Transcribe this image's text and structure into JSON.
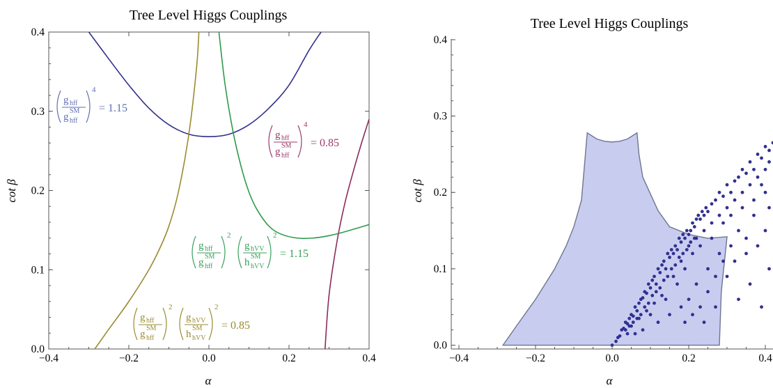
{
  "chart_data": [
    {
      "type": "line",
      "title": "Tree Level Higgs Couplings",
      "xlabel": "α",
      "ylabel": "cot β",
      "xlim": [
        -0.4,
        0.4
      ],
      "ylim": [
        0.0,
        0.4
      ],
      "xticks": [
        "−0.4",
        "−0.2",
        "0.0",
        "0.2",
        "0.4"
      ],
      "yticks": [
        "0.0",
        "0.1",
        "0.2",
        "0.3",
        "0.4"
      ],
      "grid": false,
      "series": [
        {
          "name": "(g_hff/g_hff^SM)^4 = 1.15",
          "color": "#2f2f8c",
          "x": [
            -0.3,
            -0.25,
            -0.2,
            -0.15,
            -0.1,
            -0.05,
            0.0,
            0.05,
            0.1,
            0.15,
            0.2,
            0.25,
            0.28
          ],
          "y": [
            0.4,
            0.366,
            0.333,
            0.304,
            0.283,
            0.271,
            0.268,
            0.271,
            0.283,
            0.304,
            0.333,
            0.377,
            0.4
          ]
        },
        {
          "name": "(g_hff/g_hff^SM)^4 = 0.85",
          "color": "#8c2a5a",
          "x": [
            0.29,
            0.3,
            0.32,
            0.34,
            0.36,
            0.38,
            0.4
          ],
          "y": [
            0.0,
            0.068,
            0.136,
            0.185,
            0.223,
            0.258,
            0.29
          ]
        },
        {
          "name": "(g_hff/g_hff^SM)^2 (g_hVV/h_hVV^SM)^2 = 1.15",
          "color": "#2f9a4a",
          "x": [
            0.025,
            0.04,
            0.06,
            0.08,
            0.1,
            0.12,
            0.15,
            0.18,
            0.22,
            0.26,
            0.3,
            0.34,
            0.4
          ],
          "y": [
            0.4,
            0.335,
            0.275,
            0.231,
            0.198,
            0.176,
            0.155,
            0.145,
            0.14,
            0.14,
            0.143,
            0.148,
            0.157
          ]
        },
        {
          "name": "(g_hff/g_hff^SM)^2 (g_hVV/h_hVV^SM)^2 = 0.85",
          "color": "#9a8b30",
          "x": [
            -0.285,
            -0.25,
            -0.2,
            -0.15,
            -0.12,
            -0.1,
            -0.08,
            -0.06,
            -0.045,
            -0.03,
            -0.025
          ],
          "y": [
            0.0,
            0.025,
            0.06,
            0.1,
            0.13,
            0.155,
            0.19,
            0.24,
            0.29,
            0.36,
            0.4
          ]
        }
      ],
      "annotations": [
        {
          "text_parts": {
            "num": "g",
            "num_sub": "hff",
            "den": "g",
            "den_sub": "hff",
            "den_sup": "SM",
            "power": "4",
            "rhs": "= 1.15"
          },
          "color": "#5e6fb0"
        },
        {
          "text_parts": {
            "num": "g",
            "num_sub": "hff",
            "den": "g",
            "den_sub": "hff",
            "den_sup": "SM",
            "power": "4",
            "rhs": "= 0.85"
          },
          "color": "#9a3a6a"
        },
        {
          "text_parts": {
            "num1": "g",
            "num1_sub": "hff",
            "den1": "g",
            "den1_sub": "hff",
            "den1_sup": "SM",
            "pow1": "2",
            "num2": "g",
            "num2_sub": "hVV",
            "den2": "h",
            "den2_sub": "hVV",
            "den2_sup": "SM",
            "pow2": "2",
            "rhs": "= 1.15"
          },
          "color": "#3aa05a"
        },
        {
          "text_parts": {
            "num1": "g",
            "num1_sub": "hff",
            "den1": "g",
            "den1_sub": "hff",
            "den1_sup": "SM",
            "pow1": "2",
            "num2": "g",
            "num2_sub": "hVV",
            "den2": "h",
            "den2_sub": "hVV",
            "den2_sup": "SM",
            "pow2": "2",
            "rhs": "= 0.85"
          },
          "color": "#9a8b30"
        }
      ]
    },
    {
      "type": "scatter",
      "title": "Tree Level Higgs Couplings",
      "xlabel": "α",
      "ylabel": "cot β",
      "xlim": [
        -0.42,
        0.42
      ],
      "ylim": [
        -0.005,
        0.41
      ],
      "xticks": [
        "−0.4",
        "−0.2",
        "0.0",
        "0.2",
        "0.4"
      ],
      "yticks": [
        "0.0",
        "0.1",
        "0.2",
        "0.3",
        "0.4"
      ],
      "grid": false,
      "region": {
        "fill": "#c8cdf0",
        "stroke": "#6e7490",
        "x": [
          -0.285,
          -0.25,
          -0.2,
          -0.15,
          -0.12,
          -0.1,
          -0.08,
          -0.065,
          -0.04,
          -0.02,
          0.0,
          0.02,
          0.04,
          0.065,
          0.07,
          0.08,
          0.1,
          0.12,
          0.15,
          0.2,
          0.25,
          0.3,
          0.285,
          0.28,
          -0.285
        ],
        "y": [
          0.0,
          0.025,
          0.06,
          0.1,
          0.13,
          0.155,
          0.19,
          0.278,
          0.27,
          0.267,
          0.266,
          0.267,
          0.27,
          0.278,
          0.25,
          0.22,
          0.198,
          0.176,
          0.155,
          0.145,
          0.14,
          0.142,
          0.07,
          0.0,
          0.0
        ]
      },
      "points_color": "#303090",
      "points_description": "sample points concentrated along a wedge from (0,0) widening to the upper right",
      "points": [
        [
          0.0,
          0.0
        ],
        [
          0.01,
          0.005
        ],
        [
          0.015,
          0.01
        ],
        [
          0.02,
          0.012
        ],
        [
          0.025,
          0.02
        ],
        [
          0.03,
          0.022
        ],
        [
          0.035,
          0.03
        ],
        [
          0.04,
          0.028
        ],
        [
          0.045,
          0.035
        ],
        [
          0.05,
          0.04
        ],
        [
          0.055,
          0.038
        ],
        [
          0.06,
          0.05
        ],
        [
          0.065,
          0.045
        ],
        [
          0.07,
          0.055
        ],
        [
          0.075,
          0.06
        ],
        [
          0.08,
          0.062
        ],
        [
          0.085,
          0.07
        ],
        [
          0.09,
          0.068
        ],
        [
          0.095,
          0.08
        ],
        [
          0.1,
          0.075
        ],
        [
          0.105,
          0.085
        ],
        [
          0.11,
          0.09
        ],
        [
          0.115,
          0.08
        ],
        [
          0.12,
          0.1
        ],
        [
          0.125,
          0.095
        ],
        [
          0.13,
          0.105
        ],
        [
          0.135,
          0.11
        ],
        [
          0.14,
          0.1
        ],
        [
          0.145,
          0.12
        ],
        [
          0.15,
          0.115
        ],
        [
          0.155,
          0.125
        ],
        [
          0.16,
          0.12
        ],
        [
          0.165,
          0.13
        ],
        [
          0.17,
          0.125
        ],
        [
          0.175,
          0.14
        ],
        [
          0.18,
          0.135
        ],
        [
          0.185,
          0.145
        ],
        [
          0.19,
          0.14
        ],
        [
          0.195,
          0.15
        ],
        [
          0.2,
          0.145
        ],
        [
          0.205,
          0.15
        ],
        [
          0.21,
          0.16
        ],
        [
          0.215,
          0.155
        ],
        [
          0.22,
          0.165
        ],
        [
          0.225,
          0.17
        ],
        [
          0.23,
          0.165
        ],
        [
          0.235,
          0.175
        ],
        [
          0.24,
          0.17
        ],
        [
          0.245,
          0.18
        ],
        [
          0.25,
          0.175
        ],
        [
          0.26,
          0.185
        ],
        [
          0.27,
          0.19
        ],
        [
          0.28,
          0.2
        ],
        [
          0.29,
          0.195
        ],
        [
          0.3,
          0.21
        ],
        [
          0.31,
          0.2
        ],
        [
          0.32,
          0.215
        ],
        [
          0.33,
          0.22
        ],
        [
          0.34,
          0.23
        ],
        [
          0.35,
          0.225
        ],
        [
          0.36,
          0.24
        ],
        [
          0.37,
          0.23
        ],
        [
          0.38,
          0.25
        ],
        [
          0.39,
          0.245
        ],
        [
          0.4,
          0.26
        ],
        [
          0.41,
          0.255
        ],
        [
          0.42,
          0.265
        ],
        [
          0.2,
          0.06
        ],
        [
          0.22,
          0.08
        ],
        [
          0.18,
          0.05
        ],
        [
          0.15,
          0.04
        ],
        [
          0.25,
          0.1
        ],
        [
          0.28,
          0.12
        ],
        [
          0.3,
          0.09
        ],
        [
          0.32,
          0.11
        ],
        [
          0.35,
          0.14
        ],
        [
          0.38,
          0.13
        ],
        [
          0.4,
          0.15
        ],
        [
          0.33,
          0.06
        ],
        [
          0.36,
          0.08
        ],
        [
          0.39,
          0.05
        ],
        [
          0.41,
          0.1
        ],
        [
          0.27,
          0.05
        ],
        [
          0.24,
          0.03
        ],
        [
          0.12,
          0.03
        ],
        [
          0.1,
          0.04
        ],
        [
          0.08,
          0.02
        ],
        [
          0.06,
          0.015
        ],
        [
          0.14,
          0.06
        ],
        [
          0.17,
          0.08
        ],
        [
          0.19,
          0.1
        ],
        [
          0.21,
          0.12
        ],
        [
          0.23,
          0.13
        ],
        [
          0.26,
          0.14
        ],
        [
          0.29,
          0.16
        ],
        [
          0.31,
          0.17
        ],
        [
          0.34,
          0.18
        ],
        [
          0.37,
          0.19
        ],
        [
          0.4,
          0.2
        ],
        [
          0.35,
          0.12
        ],
        [
          0.05,
          0.025
        ],
        [
          0.07,
          0.035
        ],
        [
          0.09,
          0.045
        ],
        [
          0.11,
          0.055
        ],
        [
          0.13,
          0.065
        ],
        [
          0.16,
          0.09
        ],
        [
          0.18,
          0.11
        ],
        [
          0.2,
          0.13
        ],
        [
          0.22,
          0.14
        ],
        [
          0.24,
          0.15
        ],
        [
          0.26,
          0.16
        ],
        [
          0.28,
          0.17
        ],
        [
          0.3,
          0.18
        ],
        [
          0.32,
          0.19
        ],
        [
          0.34,
          0.2
        ],
        [
          0.36,
          0.21
        ],
        [
          0.38,
          0.22
        ],
        [
          0.4,
          0.23
        ],
        [
          0.41,
          0.24
        ],
        [
          0.39,
          0.21
        ],
        [
          0.37,
          0.17
        ],
        [
          0.33,
          0.15
        ],
        [
          0.31,
          0.13
        ],
        [
          0.29,
          0.11
        ],
        [
          0.27,
          0.09
        ],
        [
          0.25,
          0.07
        ],
        [
          0.23,
          0.05
        ],
        [
          0.21,
          0.04
        ],
        [
          0.19,
          0.03
        ],
        [
          0.41,
          0.18
        ],
        [
          0.04,
          0.015
        ],
        [
          0.035,
          0.02
        ],
        [
          0.045,
          0.025
        ],
        [
          0.055,
          0.03
        ],
        [
          0.065,
          0.035
        ],
        [
          0.075,
          0.04
        ],
        [
          0.085,
          0.05
        ],
        [
          0.095,
          0.055
        ],
        [
          0.105,
          0.065
        ],
        [
          0.115,
          0.07
        ],
        [
          0.125,
          0.075
        ],
        [
          0.135,
          0.085
        ],
        [
          0.145,
          0.09
        ],
        [
          0.155,
          0.1
        ],
        [
          0.165,
          0.105
        ],
        [
          0.175,
          0.115
        ],
        [
          0.185,
          0.12
        ],
        [
          0.195,
          0.125
        ],
        [
          0.205,
          0.135
        ],
        [
          0.215,
          0.14
        ]
      ]
    }
  ]
}
